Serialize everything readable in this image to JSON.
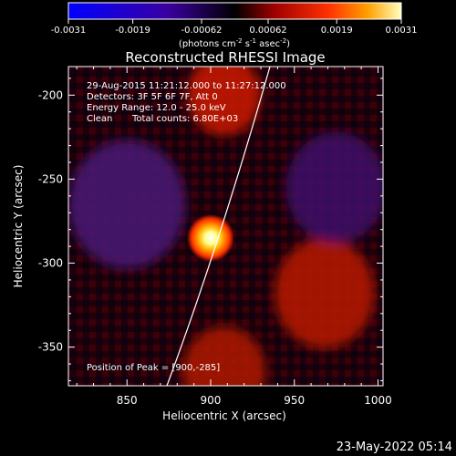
{
  "colorbar": {
    "tick_labels": [
      "-0.0031",
      "-0.0019",
      "-0.00062",
      "0.00062",
      "0.0019",
      "0.0031"
    ],
    "units_prefix": "(photons cm",
    "units_exp1": "-2",
    "units_mid1": " s",
    "units_exp2": "-1",
    "units_mid2": " asec",
    "units_exp3": "-2",
    "units_suffix": ")",
    "colors": [
      "#0000ff",
      "#3a00a0",
      "#000000",
      "#a00000",
      "#ff3000",
      "#ffa000",
      "#ffffc0"
    ]
  },
  "title": "Reconstructed RHESSI Image",
  "annotations": {
    "time_range": "29-Aug-2015 11:21:12.000 to 11:27:12.000",
    "detectors": "Detectors: 3F 5F 6F 7F, Att 0",
    "energy": "Energy Range: 12.0 - 25.0 keV",
    "method": "Clean",
    "counts": "Total counts: 6.80E+03",
    "peak": "Position of Peak = [900,-285]"
  },
  "axes": {
    "xlabel": "Heliocentric X (arcsec)",
    "ylabel": "Heliocentric Y (arcsec)",
    "x_ticks": [
      "850",
      "900",
      "950",
      "1000"
    ],
    "y_ticks": [
      "-200",
      "-250",
      "-300",
      "-350"
    ]
  },
  "footer_date": "23-May-2022 05:14",
  "image_blobs": [
    {
      "name": "peak-source",
      "x": 900,
      "y": -285,
      "r": 18,
      "color": "#ffffc8"
    },
    {
      "name": "red-blob-top",
      "x": 908,
      "y": -200,
      "r": 22,
      "color": "#cc1800"
    },
    {
      "name": "red-blob-right",
      "x": 968,
      "y": -318,
      "r": 30,
      "color": "#b81400"
    },
    {
      "name": "red-blob-bottom",
      "x": 908,
      "y": -365,
      "r": 25,
      "color": "#b01400"
    },
    {
      "name": "purple-blob-left",
      "x": 850,
      "y": -265,
      "r": 35,
      "color": "#4a1478"
    },
    {
      "name": "purple-blob-right",
      "x": 975,
      "y": -255,
      "r": 30,
      "color": "#3e106a"
    }
  ]
}
